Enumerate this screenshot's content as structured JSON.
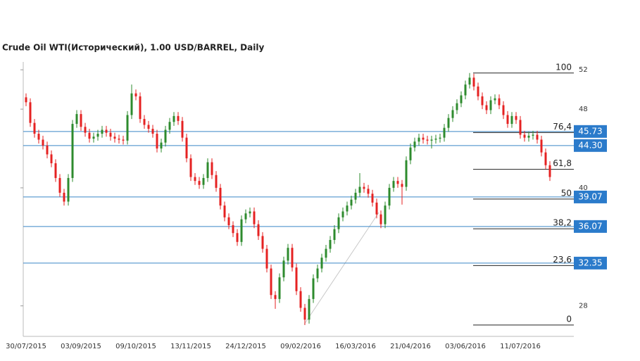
{
  "chart_data": {
    "type": "candlestick",
    "title": "Crude Oil WTI(Исторический), 1.00 USD/BARREL, Daily",
    "categories": [
      "30/07/2015",
      null,
      null,
      null,
      null,
      null,
      null,
      null,
      null,
      null,
      null,
      null,
      null,
      "03/09/2015",
      null,
      null,
      null,
      null,
      null,
      null,
      null,
      null,
      null,
      null,
      null,
      null,
      "09/10/2015",
      null,
      null,
      null,
      null,
      null,
      null,
      null,
      null,
      null,
      null,
      null,
      null,
      "13/11/2015",
      null,
      null,
      null,
      null,
      null,
      null,
      null,
      null,
      null,
      null,
      null,
      null,
      "24/12/2015",
      null,
      null,
      null,
      null,
      null,
      null,
      null,
      null,
      null,
      null,
      null,
      null,
      "09/02/2016",
      null,
      null,
      null,
      null,
      null,
      null,
      null,
      null,
      null,
      null,
      null,
      null,
      "16/03/2016",
      null,
      null,
      null,
      null,
      null,
      null,
      null,
      null,
      null,
      null,
      null,
      null,
      "21/04/2016",
      null,
      null,
      null,
      null,
      null,
      null,
      null,
      null,
      null,
      null,
      null,
      null,
      "03/06/2016",
      null,
      null,
      null,
      null,
      null,
      null,
      null,
      null,
      null,
      null,
      null,
      null,
      "11/07/2016",
      null,
      null,
      null,
      null,
      null,
      null,
      null
    ],
    "open": [
      49.2,
      48.7,
      46.6,
      45.5,
      44.9,
      44.3,
      43.4,
      42.5,
      41.0,
      39.5,
      38.6,
      41.0,
      46.5,
      47.5,
      46.2,
      45.6,
      45.0,
      45.2,
      45.5,
      45.9,
      45.6,
      45.2,
      45.0,
      44.9,
      44.8,
      47.4,
      49.6,
      49.3,
      47.0,
      46.4,
      46.0,
      45.5,
      44.0,
      44.6,
      45.9,
      46.7,
      47.3,
      46.8,
      45.1,
      43.0,
      41.1,
      40.7,
      40.3,
      41.0,
      42.6,
      41.3,
      40.0,
      38.2,
      37.0,
      36.2,
      35.4,
      34.5,
      36.8,
      37.4,
      37.6,
      36.3,
      35.1,
      33.8,
      31.8,
      29.1,
      28.7,
      30.9,
      32.6,
      33.9,
      31.9,
      29.5,
      27.8,
      26.6,
      28.7,
      30.8,
      31.8,
      32.9,
      33.8,
      34.7,
      35.8,
      37.0,
      37.6,
      38.2,
      38.8,
      39.5,
      40.1,
      39.9,
      39.4,
      38.5,
      37.3,
      36.3,
      38.2,
      40.0,
      40.7,
      40.4,
      40.1,
      42.8,
      44.1,
      44.7,
      45.1,
      44.9,
      44.8,
      44.9,
      45.0,
      45.1,
      46.1,
      47.1,
      47.9,
      48.6,
      49.4,
      50.5,
      51.2,
      50.3,
      49.3,
      48.4,
      47.9,
      48.9,
      49.1,
      48.4,
      47.4,
      46.5,
      47.3,
      46.9,
      45.4,
      45.1,
      45.3,
      45.4,
      44.9,
      43.6,
      42.3
    ],
    "high": [
      49.6,
      49.1,
      47.0,
      45.9,
      45.3,
      44.7,
      43.8,
      42.9,
      41.4,
      39.9,
      41.4,
      46.9,
      47.9,
      47.9,
      46.6,
      46.0,
      45.6,
      45.9,
      46.3,
      46.3,
      46.0,
      45.6,
      45.4,
      45.3,
      47.8,
      50.5,
      50.0,
      49.7,
      47.4,
      46.8,
      46.4,
      45.9,
      45.0,
      46.3,
      47.1,
      47.7,
      47.7,
      47.2,
      45.5,
      43.4,
      41.5,
      41.1,
      41.4,
      43.0,
      43.0,
      41.7,
      40.4,
      38.6,
      37.4,
      36.6,
      35.8,
      37.2,
      37.8,
      38.0,
      38.0,
      36.7,
      35.5,
      34.2,
      32.2,
      29.5,
      31.3,
      33.0,
      34.3,
      34.3,
      32.3,
      29.9,
      28.2,
      29.1,
      31.2,
      32.2,
      33.3,
      34.2,
      35.1,
      36.2,
      37.4,
      38.0,
      38.6,
      39.2,
      39.9,
      41.5,
      40.5,
      40.3,
      39.8,
      38.9,
      37.7,
      38.6,
      40.4,
      41.1,
      41.1,
      40.8,
      43.2,
      44.5,
      45.1,
      45.5,
      45.5,
      45.3,
      45.3,
      45.4,
      45.5,
      46.5,
      47.5,
      48.3,
      49.0,
      49.8,
      50.9,
      51.67,
      51.6,
      50.7,
      49.7,
      48.8,
      49.3,
      49.5,
      49.5,
      48.8,
      47.8,
      47.7,
      47.7,
      47.3,
      45.8,
      45.7,
      45.8,
      45.8,
      45.3,
      44.0,
      42.7
    ],
    "low": [
      48.3,
      46.2,
      45.1,
      44.5,
      43.9,
      43.0,
      42.1,
      40.6,
      39.1,
      38.2,
      38.2,
      40.6,
      46.1,
      45.8,
      45.2,
      44.6,
      44.6,
      44.8,
      45.1,
      45.2,
      44.8,
      44.6,
      44.5,
      44.4,
      44.4,
      47.0,
      48.9,
      46.6,
      46.0,
      45.6,
      45.1,
      43.6,
      43.6,
      44.2,
      45.5,
      46.3,
      46.4,
      44.7,
      42.6,
      40.7,
      40.3,
      39.9,
      39.9,
      40.6,
      40.9,
      39.6,
      37.8,
      36.6,
      35.8,
      35.0,
      34.1,
      34.1,
      36.4,
      37.0,
      35.9,
      34.7,
      33.4,
      31.4,
      28.7,
      27.7,
      28.3,
      30.5,
      32.2,
      31.5,
      29.1,
      27.4,
      26.05,
      26.2,
      28.3,
      30.4,
      31.4,
      32.5,
      33.4,
      34.3,
      35.4,
      36.6,
      37.2,
      37.8,
      38.4,
      39.1,
      39.5,
      39.0,
      38.1,
      36.9,
      35.9,
      35.9,
      37.8,
      39.6,
      40.0,
      38.3,
      39.7,
      42.4,
      43.7,
      44.3,
      44.5,
      44.4,
      44.0,
      44.5,
      44.6,
      44.7,
      45.7,
      46.7,
      47.5,
      48.2,
      49.0,
      50.1,
      49.9,
      48.9,
      48.0,
      47.5,
      47.5,
      48.5,
      48.0,
      47.0,
      46.1,
      46.1,
      46.5,
      45.0,
      44.7,
      44.7,
      44.9,
      44.5,
      43.2,
      41.9,
      40.7
    ],
    "close": [
      48.7,
      46.6,
      45.5,
      44.9,
      44.3,
      43.4,
      42.5,
      41.0,
      39.5,
      38.6,
      41.0,
      46.5,
      47.5,
      46.2,
      45.6,
      45.0,
      45.2,
      45.5,
      45.9,
      45.6,
      45.2,
      45.0,
      44.9,
      44.8,
      47.4,
      49.6,
      49.3,
      47.0,
      46.4,
      46.0,
      45.5,
      44.0,
      44.6,
      45.9,
      46.7,
      47.3,
      46.8,
      45.1,
      43.0,
      41.1,
      40.7,
      40.3,
      41.0,
      42.6,
      41.3,
      40.0,
      38.2,
      37.0,
      36.2,
      35.4,
      34.5,
      36.8,
      37.4,
      37.6,
      36.3,
      35.1,
      33.8,
      31.8,
      29.1,
      28.7,
      30.9,
      32.6,
      33.9,
      31.9,
      29.5,
      27.8,
      26.6,
      28.7,
      30.8,
      31.8,
      32.9,
      33.8,
      34.7,
      35.8,
      37.0,
      37.6,
      38.2,
      38.8,
      39.5,
      40.1,
      39.9,
      39.4,
      38.5,
      37.3,
      36.3,
      38.2,
      40.0,
      40.7,
      40.4,
      40.1,
      42.8,
      44.1,
      44.7,
      45.1,
      44.9,
      44.8,
      44.9,
      45.0,
      45.1,
      46.1,
      47.1,
      47.9,
      48.6,
      49.4,
      50.5,
      51.2,
      50.3,
      49.3,
      48.4,
      47.9,
      48.9,
      49.1,
      48.4,
      47.4,
      46.5,
      47.3,
      46.9,
      45.4,
      45.1,
      45.3,
      45.4,
      44.9,
      43.6,
      42.3,
      41.1
    ],
    "up_color": "#2e8b2e",
    "down_color": "#e52222",
    "ylim": [
      24.9,
      52.8
    ],
    "yticks": [
      28,
      40,
      48,
      52
    ],
    "price_lines": [
      45.73,
      {
        "value": 44.3,
        "label": "44.30"
      },
      39.07,
      36.07,
      32.35
    ],
    "price_line_color": "#3a86c8",
    "fib_levels": [
      {
        "label": "100",
        "value": 51.67
      },
      {
        "label": "76,4",
        "value": 45.62
      },
      {
        "label": "61,8",
        "value": 41.88
      },
      {
        "label": "50",
        "value": 38.86
      },
      {
        "label": "38,2",
        "value": 35.84
      },
      {
        "label": "23,6",
        "value": 32.1
      },
      {
        "label": "0",
        "value": 26.05
      }
    ]
  }
}
